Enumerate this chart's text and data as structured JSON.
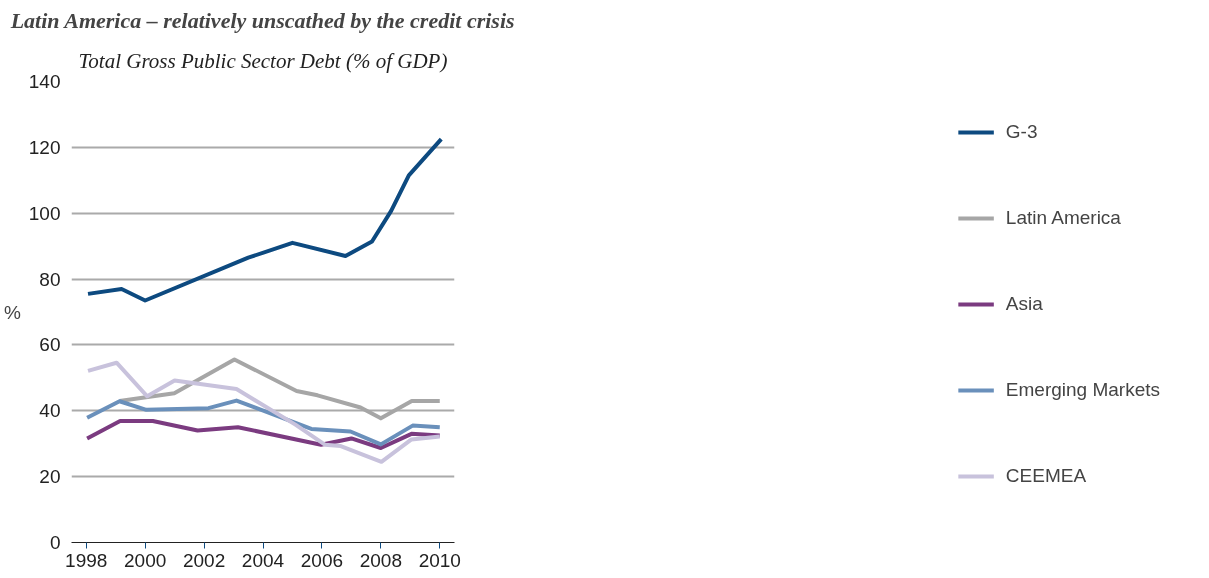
{
  "chart_data": {
    "type": "line",
    "title": "Latin America – relatively unscathed by the credit crisis",
    "subtitle": "Total Gross Public Sector Debt (% of GDP)",
    "ylabel": "%",
    "xlim": [
      1997.5,
      2010.5
    ],
    "xticks": [
      1998,
      2000,
      2002,
      2004,
      2006,
      2008,
      2010
    ],
    "ylim": [
      0,
      140
    ],
    "yticks": [
      0,
      20,
      40,
      60,
      80,
      100,
      120,
      140
    ],
    "grid": "y",
    "legend": "right",
    "line_style": "solid",
    "marker": "none",
    "series": [
      {
        "name": "G-3",
        "color": "#0d4a80",
        "x": [
          1998.06,
          1999.2,
          2000.0,
          2003.5,
          2005.0,
          2006.8,
          2007.7,
          2008.35,
          2008.95,
          2010.05
        ],
        "values": [
          75.5,
          77,
          73.5,
          86.5,
          91,
          87,
          91.4,
          100.7,
          111.5,
          122.5
        ]
      },
      {
        "name": "Latin America",
        "color": "#a6a6a6",
        "x": [
          1999.13,
          2000.99,
          2003.03,
          2005.14,
          2005.85,
          2007.31,
          2008.0,
          2009.05,
          2010.0
        ],
        "values": [
          43,
          45.3,
          55.6,
          46,
          44.7,
          41,
          37.7,
          43,
          43
        ]
      },
      {
        "name": "Asia",
        "color": "#7b3b80",
        "x": [
          1998.03,
          1999.15,
          2000.26,
          2001.78,
          2003.15,
          2005.97,
          2007.0,
          2008.0,
          2009.04,
          2010.0
        ],
        "values": [
          31.6,
          36.9,
          36.9,
          34,
          35,
          29.7,
          31.6,
          28.7,
          33,
          32.5
        ]
      },
      {
        "name": "Emerging Markets",
        "color": "#6a90bb",
        "x": [
          1998.03,
          1999.13,
          2000.04,
          2002.15,
          2003.1,
          2005.64,
          2006.97,
          2008.0,
          2009.08,
          2010.0
        ],
        "values": [
          37.9,
          42.9,
          40.3,
          40.8,
          43.1,
          34.5,
          33.7,
          29.8,
          35.5,
          35
        ]
      },
      {
        "name": "CEEMEA",
        "color": "#c8c2dc",
        "x": [
          1998.06,
          1999.03,
          2000.07,
          2001.0,
          2003.1,
          2005.1,
          2006.1,
          2006.64,
          2008.02,
          2009.04,
          2010.0
        ],
        "values": [
          52.1,
          54.6,
          44.4,
          49.2,
          46.6,
          35.8,
          29.7,
          29.3,
          24.5,
          31.3,
          32.2
        ]
      }
    ]
  }
}
